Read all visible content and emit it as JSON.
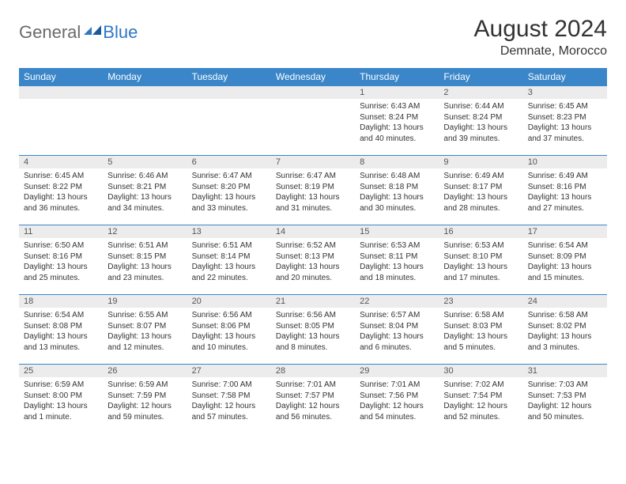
{
  "brand": {
    "general": "General",
    "blue": "Blue"
  },
  "title": "August 2024",
  "location": "Demnate, Morocco",
  "style": {
    "header_bg": "#3a86c8",
    "header_fg": "#ffffff",
    "daynum_bg": "#ececec",
    "border_color": "#3a86c8",
    "text_color": "#333333",
    "logo_gray": "#6a6a6a",
    "logo_blue": "#2f78c3",
    "month_title_fontsize": 30,
    "location_fontsize": 16,
    "dayheader_fontsize": 12,
    "daynum_fontsize": 11,
    "dayinfo_fontsize": 10
  },
  "day_headers": [
    "Sunday",
    "Monday",
    "Tuesday",
    "Wednesday",
    "Thursday",
    "Friday",
    "Saturday"
  ],
  "weeks": [
    [
      {
        "n": "",
        "sr": "",
        "ss": "",
        "dl": ""
      },
      {
        "n": "",
        "sr": "",
        "ss": "",
        "dl": ""
      },
      {
        "n": "",
        "sr": "",
        "ss": "",
        "dl": ""
      },
      {
        "n": "",
        "sr": "",
        "ss": "",
        "dl": ""
      },
      {
        "n": "1",
        "sr": "Sunrise: 6:43 AM",
        "ss": "Sunset: 8:24 PM",
        "dl": "Daylight: 13 hours and 40 minutes."
      },
      {
        "n": "2",
        "sr": "Sunrise: 6:44 AM",
        "ss": "Sunset: 8:24 PM",
        "dl": "Daylight: 13 hours and 39 minutes."
      },
      {
        "n": "3",
        "sr": "Sunrise: 6:45 AM",
        "ss": "Sunset: 8:23 PM",
        "dl": "Daylight: 13 hours and 37 minutes."
      }
    ],
    [
      {
        "n": "4",
        "sr": "Sunrise: 6:45 AM",
        "ss": "Sunset: 8:22 PM",
        "dl": "Daylight: 13 hours and 36 minutes."
      },
      {
        "n": "5",
        "sr": "Sunrise: 6:46 AM",
        "ss": "Sunset: 8:21 PM",
        "dl": "Daylight: 13 hours and 34 minutes."
      },
      {
        "n": "6",
        "sr": "Sunrise: 6:47 AM",
        "ss": "Sunset: 8:20 PM",
        "dl": "Daylight: 13 hours and 33 minutes."
      },
      {
        "n": "7",
        "sr": "Sunrise: 6:47 AM",
        "ss": "Sunset: 8:19 PM",
        "dl": "Daylight: 13 hours and 31 minutes."
      },
      {
        "n": "8",
        "sr": "Sunrise: 6:48 AM",
        "ss": "Sunset: 8:18 PM",
        "dl": "Daylight: 13 hours and 30 minutes."
      },
      {
        "n": "9",
        "sr": "Sunrise: 6:49 AM",
        "ss": "Sunset: 8:17 PM",
        "dl": "Daylight: 13 hours and 28 minutes."
      },
      {
        "n": "10",
        "sr": "Sunrise: 6:49 AM",
        "ss": "Sunset: 8:16 PM",
        "dl": "Daylight: 13 hours and 27 minutes."
      }
    ],
    [
      {
        "n": "11",
        "sr": "Sunrise: 6:50 AM",
        "ss": "Sunset: 8:16 PM",
        "dl": "Daylight: 13 hours and 25 minutes."
      },
      {
        "n": "12",
        "sr": "Sunrise: 6:51 AM",
        "ss": "Sunset: 8:15 PM",
        "dl": "Daylight: 13 hours and 23 minutes."
      },
      {
        "n": "13",
        "sr": "Sunrise: 6:51 AM",
        "ss": "Sunset: 8:14 PM",
        "dl": "Daylight: 13 hours and 22 minutes."
      },
      {
        "n": "14",
        "sr": "Sunrise: 6:52 AM",
        "ss": "Sunset: 8:13 PM",
        "dl": "Daylight: 13 hours and 20 minutes."
      },
      {
        "n": "15",
        "sr": "Sunrise: 6:53 AM",
        "ss": "Sunset: 8:11 PM",
        "dl": "Daylight: 13 hours and 18 minutes."
      },
      {
        "n": "16",
        "sr": "Sunrise: 6:53 AM",
        "ss": "Sunset: 8:10 PM",
        "dl": "Daylight: 13 hours and 17 minutes."
      },
      {
        "n": "17",
        "sr": "Sunrise: 6:54 AM",
        "ss": "Sunset: 8:09 PM",
        "dl": "Daylight: 13 hours and 15 minutes."
      }
    ],
    [
      {
        "n": "18",
        "sr": "Sunrise: 6:54 AM",
        "ss": "Sunset: 8:08 PM",
        "dl": "Daylight: 13 hours and 13 minutes."
      },
      {
        "n": "19",
        "sr": "Sunrise: 6:55 AM",
        "ss": "Sunset: 8:07 PM",
        "dl": "Daylight: 13 hours and 12 minutes."
      },
      {
        "n": "20",
        "sr": "Sunrise: 6:56 AM",
        "ss": "Sunset: 8:06 PM",
        "dl": "Daylight: 13 hours and 10 minutes."
      },
      {
        "n": "21",
        "sr": "Sunrise: 6:56 AM",
        "ss": "Sunset: 8:05 PM",
        "dl": "Daylight: 13 hours and 8 minutes."
      },
      {
        "n": "22",
        "sr": "Sunrise: 6:57 AM",
        "ss": "Sunset: 8:04 PM",
        "dl": "Daylight: 13 hours and 6 minutes."
      },
      {
        "n": "23",
        "sr": "Sunrise: 6:58 AM",
        "ss": "Sunset: 8:03 PM",
        "dl": "Daylight: 13 hours and 5 minutes."
      },
      {
        "n": "24",
        "sr": "Sunrise: 6:58 AM",
        "ss": "Sunset: 8:02 PM",
        "dl": "Daylight: 13 hours and 3 minutes."
      }
    ],
    [
      {
        "n": "25",
        "sr": "Sunrise: 6:59 AM",
        "ss": "Sunset: 8:00 PM",
        "dl": "Daylight: 13 hours and 1 minute."
      },
      {
        "n": "26",
        "sr": "Sunrise: 6:59 AM",
        "ss": "Sunset: 7:59 PM",
        "dl": "Daylight: 12 hours and 59 minutes."
      },
      {
        "n": "27",
        "sr": "Sunrise: 7:00 AM",
        "ss": "Sunset: 7:58 PM",
        "dl": "Daylight: 12 hours and 57 minutes."
      },
      {
        "n": "28",
        "sr": "Sunrise: 7:01 AM",
        "ss": "Sunset: 7:57 PM",
        "dl": "Daylight: 12 hours and 56 minutes."
      },
      {
        "n": "29",
        "sr": "Sunrise: 7:01 AM",
        "ss": "Sunset: 7:56 PM",
        "dl": "Daylight: 12 hours and 54 minutes."
      },
      {
        "n": "30",
        "sr": "Sunrise: 7:02 AM",
        "ss": "Sunset: 7:54 PM",
        "dl": "Daylight: 12 hours and 52 minutes."
      },
      {
        "n": "31",
        "sr": "Sunrise: 7:03 AM",
        "ss": "Sunset: 7:53 PM",
        "dl": "Daylight: 12 hours and 50 minutes."
      }
    ]
  ]
}
